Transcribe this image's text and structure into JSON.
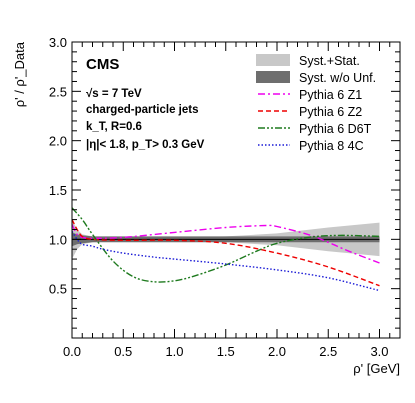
{
  "chart_data": {
    "type": "line",
    "experiment": "CMS",
    "annotations": [
      "√s = 7 TeV",
      "charged-particle jets",
      "k_T, R=0.6",
      "|η|< 1.8, p_T> 0.3 GeV"
    ],
    "ylabel": "ρ' / ρ'_Data",
    "xlabel": "ρ' [GeV]",
    "xlim": [
      0.0,
      3.2
    ],
    "ylim": [
      0.0,
      3.0
    ],
    "x_ticks": [
      "0.0",
      "0.5",
      "1.0",
      "1.5",
      "2.0",
      "2.5",
      "3.0"
    ],
    "y_ticks": [
      "0.5",
      "1.0",
      "1.5",
      "2.0",
      "2.5",
      "3.0"
    ],
    "legend_position": "top-right",
    "legend": [
      "Syst.+Stat.",
      "Syst. w/o Unf.",
      "Pythia 6 Z1",
      "Pythia 6 Z2",
      "Pythia 6 D6T",
      "Pythia 8 4C"
    ],
    "bands": [
      {
        "name": "Syst.+Stat.",
        "color": "#c8c8c8",
        "x": [
          0.0,
          0.05,
          0.1,
          0.2,
          0.5,
          1.0,
          1.5,
          2.0,
          2.5,
          3.0
        ],
        "upper": [
          1.2,
          1.1,
          1.05,
          1.03,
          1.02,
          1.02,
          1.03,
          1.06,
          1.12,
          1.17
        ],
        "lower": [
          0.8,
          0.9,
          0.95,
          0.97,
          0.98,
          0.98,
          0.97,
          0.94,
          0.88,
          0.83
        ]
      },
      {
        "name": "Syst. w/o Unf.",
        "color": "#6e6e6e",
        "x": [
          0.0,
          0.05,
          0.1,
          0.2,
          0.5,
          1.0,
          1.5,
          2.0,
          2.5,
          3.0
        ],
        "upper": [
          1.07,
          1.05,
          1.04,
          1.03,
          1.03,
          1.03,
          1.03,
          1.03,
          1.03,
          1.03
        ],
        "lower": [
          0.93,
          0.95,
          0.96,
          0.97,
          0.97,
          0.97,
          0.97,
          0.97,
          0.97,
          0.97
        ]
      }
    ],
    "series": [
      {
        "name": "Pythia 6 Z1",
        "color": "#ee00ee",
        "dash": "dashdot",
        "x": [
          0.0,
          0.05,
          0.1,
          0.2,
          0.5,
          1.0,
          1.5,
          1.9,
          2.0,
          2.3,
          2.5,
          2.7,
          3.0
        ],
        "y": [
          1.15,
          1.05,
          1.02,
          1.01,
          1.02,
          1.07,
          1.12,
          1.14,
          1.13,
          1.05,
          0.97,
          0.88,
          0.76
        ]
      },
      {
        "name": "Pythia 6 Z2",
        "color": "#ee0000",
        "dash": "dashed",
        "x": [
          0.0,
          0.05,
          0.1,
          0.2,
          0.5,
          1.0,
          1.5,
          2.0,
          2.5,
          3.0
        ],
        "y": [
          1.2,
          1.1,
          1.03,
          1.0,
          0.99,
          0.99,
          0.96,
          0.86,
          0.72,
          0.53
        ]
      },
      {
        "name": "Pythia 6 D6T",
        "color": "#1e7a1e",
        "dash": "dashdotdot",
        "x": [
          0.0,
          0.1,
          0.2,
          0.4,
          0.6,
          0.8,
          1.0,
          1.2,
          1.5,
          1.8,
          2.0,
          2.3,
          2.6,
          3.0
        ],
        "y": [
          1.32,
          1.2,
          1.05,
          0.78,
          0.62,
          0.57,
          0.58,
          0.63,
          0.74,
          0.88,
          0.96,
          1.02,
          1.04,
          1.03
        ]
      },
      {
        "name": "Pythia 8 4C",
        "color": "#1a1ad6",
        "dash": "dotted",
        "x": [
          0.0,
          0.05,
          0.1,
          0.2,
          0.3,
          0.5,
          0.8,
          1.0,
          1.5,
          2.0,
          2.5,
          3.0
        ],
        "y": [
          1.08,
          1.0,
          0.95,
          0.93,
          0.9,
          0.86,
          0.82,
          0.8,
          0.75,
          0.69,
          0.61,
          0.48
        ]
      }
    ]
  }
}
